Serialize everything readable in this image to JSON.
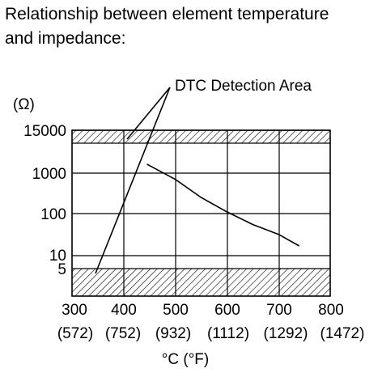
{
  "title_lines": [
    "Relationship between element temperature",
    "and impedance:"
  ],
  "chart_data": {
    "type": "line",
    "title": "Relationship between element temperature and impedance:",
    "xlabel": "°C (°F)",
    "ylabel": "(Ω)",
    "x_ticks": [
      {
        "c": "300",
        "f": "(572)"
      },
      {
        "c": "400",
        "f": "(752)"
      },
      {
        "c": "500",
        "f": "(932)"
      },
      {
        "c": "600",
        "f": "(1112)"
      },
      {
        "c": "700",
        "f": "(1292)"
      },
      {
        "c": "800",
        "f": "(1472)"
      }
    ],
    "y_ticks": [
      "15000",
      "1000",
      "100",
      "10",
      "5"
    ],
    "xlim": [
      300,
      800
    ],
    "y_scale": "log",
    "grid": true,
    "annotation": "DTC Detection Area",
    "shaded_areas": [
      {
        "name": "upper",
        "y_range": [
          10000,
          15000
        ]
      },
      {
        "name": "lower",
        "y_range": [
          1,
          5
        ]
      }
    ],
    "series": [
      {
        "x": [
          445,
          500,
          550,
          600,
          650,
          700,
          740
        ],
        "y": [
          2000,
          700,
          250,
          110,
          55,
          32,
          17
        ]
      }
    ]
  }
}
